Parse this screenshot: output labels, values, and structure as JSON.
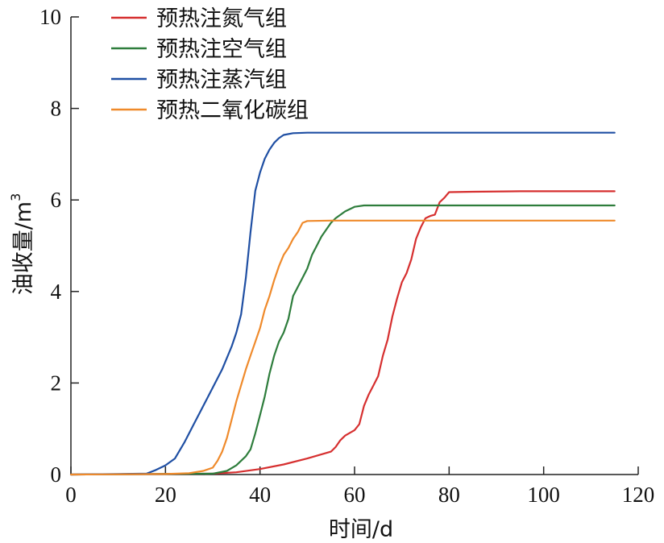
{
  "chart_data": {
    "type": "line",
    "title": "",
    "xlabel": "时间/d",
    "ylabel": "油收量/m",
    "ylabel_sup": "3",
    "xlim": [
      0,
      120
    ],
    "ylim": [
      0,
      10
    ],
    "xticks": [
      0,
      20,
      40,
      60,
      80,
      100,
      120
    ],
    "yticks": [
      0,
      2,
      4,
      6,
      8,
      10
    ],
    "grid": false,
    "legend_position": "top-left",
    "series": [
      {
        "name": "预热注氮气组",
        "color": "#d62f2f",
        "points": [
          [
            0,
            0
          ],
          [
            30,
            0.02
          ],
          [
            35,
            0.05
          ],
          [
            40,
            0.12
          ],
          [
            45,
            0.22
          ],
          [
            50,
            0.35
          ],
          [
            55,
            0.5
          ],
          [
            56,
            0.6
          ],
          [
            57,
            0.75
          ],
          [
            58,
            0.85
          ],
          [
            60,
            0.97
          ],
          [
            61,
            1.1
          ],
          [
            62,
            1.5
          ],
          [
            63,
            1.75
          ],
          [
            64,
            1.95
          ],
          [
            65,
            2.15
          ],
          [
            66,
            2.6
          ],
          [
            67,
            2.95
          ],
          [
            68,
            3.45
          ],
          [
            69,
            3.85
          ],
          [
            70,
            4.2
          ],
          [
            71,
            4.4
          ],
          [
            72,
            4.7
          ],
          [
            73,
            5.15
          ],
          [
            74,
            5.4
          ],
          [
            75,
            5.6
          ],
          [
            76,
            5.65
          ],
          [
            77,
            5.68
          ],
          [
            78,
            5.95
          ],
          [
            79,
            6.05
          ],
          [
            80,
            6.17
          ],
          [
            85,
            6.18
          ],
          [
            95,
            6.19
          ],
          [
            105,
            6.19
          ],
          [
            115,
            6.19
          ]
        ]
      },
      {
        "name": "预热注空气组",
        "color": "#2e7d3c",
        "points": [
          [
            0,
            0
          ],
          [
            30,
            0.02
          ],
          [
            33,
            0.08
          ],
          [
            35,
            0.2
          ],
          [
            37,
            0.4
          ],
          [
            38,
            0.55
          ],
          [
            39,
            0.9
          ],
          [
            40,
            1.3
          ],
          [
            41,
            1.7
          ],
          [
            42,
            2.2
          ],
          [
            43,
            2.6
          ],
          [
            44,
            2.9
          ],
          [
            45,
            3.1
          ],
          [
            46,
            3.4
          ],
          [
            47,
            3.9
          ],
          [
            48,
            4.1
          ],
          [
            49,
            4.3
          ],
          [
            50,
            4.5
          ],
          [
            51,
            4.8
          ],
          [
            52,
            5.0
          ],
          [
            53,
            5.2
          ],
          [
            54,
            5.35
          ],
          [
            55,
            5.5
          ],
          [
            56,
            5.6
          ],
          [
            58,
            5.75
          ],
          [
            60,
            5.85
          ],
          [
            62,
            5.88
          ],
          [
            70,
            5.88
          ],
          [
            80,
            5.88
          ],
          [
            95,
            5.88
          ],
          [
            115,
            5.88
          ]
        ]
      },
      {
        "name": "预热注蒸汽组",
        "color": "#1f4fa3",
        "points": [
          [
            0,
            0
          ],
          [
            10,
            0.01
          ],
          [
            16,
            0.02
          ],
          [
            18,
            0.1
          ],
          [
            20,
            0.2
          ],
          [
            22,
            0.35
          ],
          [
            24,
            0.7
          ],
          [
            26,
            1.1
          ],
          [
            28,
            1.5
          ],
          [
            30,
            1.9
          ],
          [
            32,
            2.3
          ],
          [
            34,
            2.8
          ],
          [
            35,
            3.1
          ],
          [
            36,
            3.5
          ],
          [
            37,
            4.3
          ],
          [
            38,
            5.3
          ],
          [
            39,
            6.2
          ],
          [
            40,
            6.6
          ],
          [
            41,
            6.9
          ],
          [
            42,
            7.1
          ],
          [
            43,
            7.25
          ],
          [
            44,
            7.35
          ],
          [
            45,
            7.42
          ],
          [
            47,
            7.46
          ],
          [
            50,
            7.47
          ],
          [
            60,
            7.47
          ],
          [
            80,
            7.47
          ],
          [
            100,
            7.47
          ],
          [
            115,
            7.47
          ]
        ]
      },
      {
        "name": "预热二氧化碳组",
        "color": "#ef8a2b",
        "points": [
          [
            0,
            0
          ],
          [
            20,
            0.01
          ],
          [
            25,
            0.03
          ],
          [
            28,
            0.08
          ],
          [
            30,
            0.15
          ],
          [
            31,
            0.3
          ],
          [
            32,
            0.5
          ],
          [
            33,
            0.8
          ],
          [
            34,
            1.2
          ],
          [
            35,
            1.6
          ],
          [
            36,
            1.95
          ],
          [
            37,
            2.3
          ],
          [
            38,
            2.6
          ],
          [
            39,
            2.9
          ],
          [
            40,
            3.2
          ],
          [
            41,
            3.6
          ],
          [
            42,
            3.9
          ],
          [
            43,
            4.25
          ],
          [
            44,
            4.55
          ],
          [
            45,
            4.8
          ],
          [
            46,
            4.95
          ],
          [
            47,
            5.15
          ],
          [
            48,
            5.3
          ],
          [
            49,
            5.5
          ],
          [
            50,
            5.54
          ],
          [
            55,
            5.55
          ],
          [
            65,
            5.55
          ],
          [
            80,
            5.55
          ],
          [
            100,
            5.55
          ],
          [
            115,
            5.55
          ]
        ]
      }
    ]
  }
}
